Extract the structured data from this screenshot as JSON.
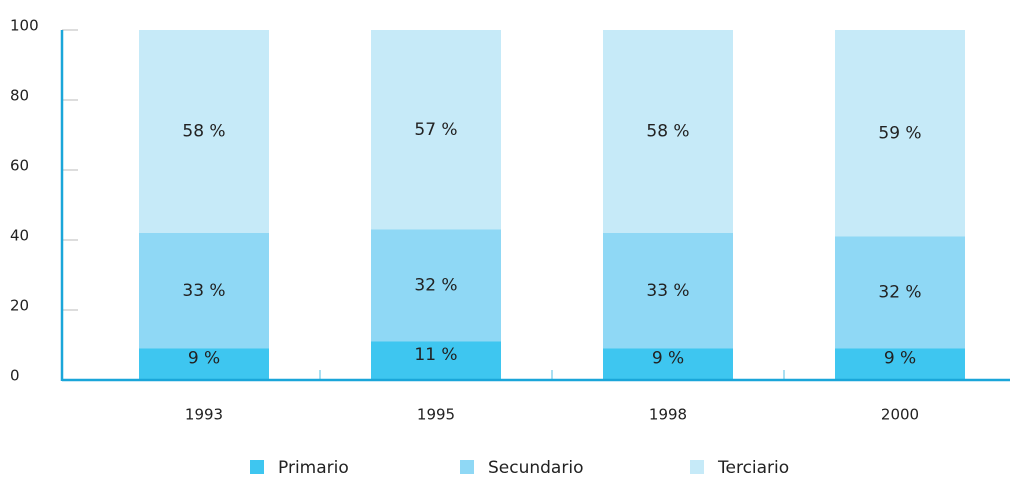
{
  "chart_data": {
    "type": "stacked_bar",
    "categories": [
      "1993",
      "1995",
      "1998",
      "2000"
    ],
    "series": [
      {
        "name": "Primario",
        "color": "#3ec6f0",
        "values": [
          9,
          11,
          9,
          9
        ],
        "value_labels": [
          "9 %",
          "11 %",
          "9 %",
          "9 %"
        ]
      },
      {
        "name": "Secundario",
        "color": "#8fd8f5",
        "values": [
          33,
          32,
          33,
          32
        ],
        "value_labels": [
          "33 %",
          "32 %",
          "33 %",
          "32 %"
        ]
      },
      {
        "name": "Terciario",
        "color": "#c6eaf8",
        "values": [
          58,
          57,
          58,
          59
        ],
        "value_labels": [
          "58 %",
          "57 %",
          "58 %",
          "59 %"
        ]
      }
    ],
    "ylim": [
      0,
      100
    ],
    "yticks": [
      0,
      20,
      40,
      60,
      80,
      100
    ],
    "legend": "bottom"
  }
}
